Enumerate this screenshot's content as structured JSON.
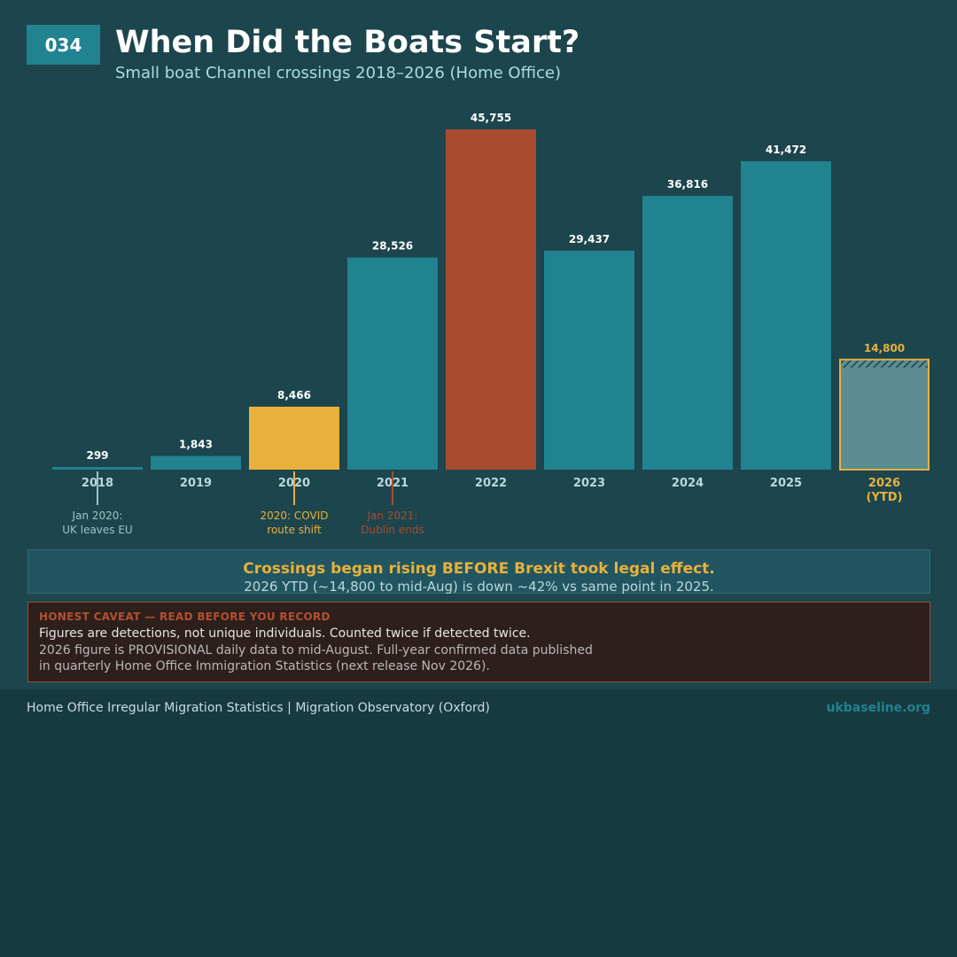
{
  "header": {
    "badge": "034",
    "title": "When Did the Boats Start?",
    "subtitle": "Small boat Channel crossings 2018–2026 (Home Office)"
  },
  "chart_data": {
    "type": "bar",
    "categories": [
      "2018",
      "2019",
      "2020",
      "2021",
      "2022",
      "2023",
      "2024",
      "2025",
      "2026\n(YTD)"
    ],
    "values": [
      299,
      1843,
      8466,
      28526,
      45755,
      29437,
      36816,
      41472,
      14800
    ],
    "value_labels": [
      "299",
      "1,843",
      "8,466",
      "28,526",
      "45,755",
      "29,437",
      "36,816",
      "41,472",
      "14,800"
    ],
    "highlight": {
      "2020": "#e8b13b",
      "2022": "#a84c30",
      "2026 (YTD)": "provisional"
    },
    "colors": {
      "default": "#218290",
      "covid": "#e8b13b",
      "peak": "#a84c30",
      "provisional_fill": "#5b8c91",
      "provisional_border": "#e8b13b"
    },
    "ylim": [
      0,
      45755
    ],
    "grid": false,
    "annotations": [
      {
        "category_index": 0,
        "text": [
          "Jan 2020:",
          "UK leaves EU"
        ],
        "color": "#9fc3c8"
      },
      {
        "category_index": 2,
        "text": [
          "2020: COVID",
          "route shift"
        ],
        "color": "#e8b13b"
      },
      {
        "category_index": 3,
        "text": [
          "Jan 2021:",
          "Dublin ends"
        ],
        "color": "#a84c30"
      }
    ]
  },
  "key_finding": {
    "headline": "Crossings began rising BEFORE Brexit took legal effect.",
    "detail": "2026 YTD (~14,800 to mid-Aug) is down ~42% vs same point in 2025."
  },
  "caveat": {
    "heading": "HONEST CAVEAT — READ BEFORE YOU RECORD",
    "line1": "Figures are detections, not unique individuals. Counted twice if detected twice.",
    "line2": "2026 figure is PROVISIONAL daily data to mid-August. Full-year confirmed data published in quarterly Home Office Immigration Statistics (next release Nov 2026)."
  },
  "footer": {
    "sources": "Home Office Irregular Migration Statistics | Migration Observatory (Oxford)",
    "site": "ukbaseline.org"
  }
}
